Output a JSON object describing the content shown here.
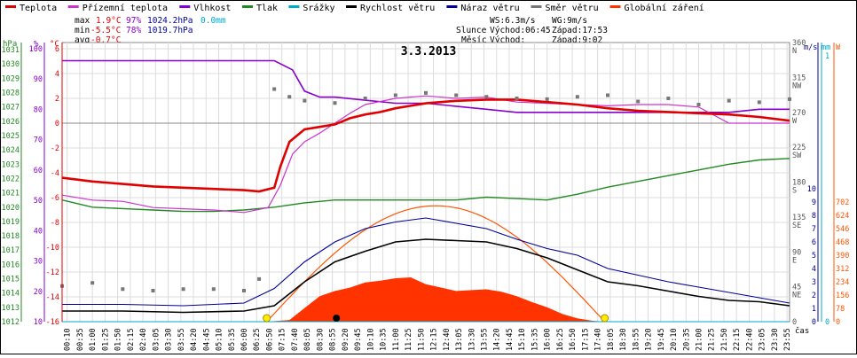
{
  "legend": [
    {
      "label": "Teplota",
      "color": "#e00000"
    },
    {
      "label": "Přízemní teplota",
      "color": "#cc33cc"
    },
    {
      "label": "Vlhkost",
      "color": "#8800cc"
    },
    {
      "label": "Tlak",
      "color": "#228822"
    },
    {
      "label": "Srážky",
      "color": "#00aacc"
    },
    {
      "label": "Rychlost větru",
      "color": "#000000"
    },
    {
      "label": "Náraz větru",
      "color": "#000099"
    },
    {
      "label": "Směr větru",
      "color": "#777777"
    },
    {
      "label": "Globální záření",
      "color": "#ff3300"
    }
  ],
  "stats": {
    "max": {
      "label": "max",
      "temp": "1.9°C",
      "hum": "97%",
      "press": "1024.2hPa",
      "rain": "0.0mm"
    },
    "min": {
      "label": "min",
      "temp": "-5.5°C",
      "hum": "78%",
      "press": "1019.7hPa"
    },
    "avg": {
      "label": "avg",
      "temp": "-0.7°C"
    }
  },
  "wind_info": {
    "ws": "WS:6.3m/s",
    "wg": "WG:9m/s"
  },
  "sun": {
    "label": "Slunce",
    "rise": "Východ:06:45",
    "set": "Západ:17:53"
  },
  "moon": {
    "label": "Měsíc",
    "rise": "Východ:",
    "set": "Západ:9:02"
  },
  "title": "3.3.2013",
  "axes": {
    "hpa": {
      "unit": "hPa",
      "ticks": [
        "1031",
        "1030",
        "1029",
        "1028",
        "1027",
        "1026",
        "1025",
        "1024",
        "1023",
        "1022",
        "1021",
        "1020",
        "1019",
        "1018",
        "1017",
        "1016",
        "1015",
        "1014",
        "1013",
        "1012"
      ]
    },
    "pct": {
      "unit": "%",
      "ticks": [
        "100",
        "90",
        "80",
        "70",
        "60",
        "50",
        "40",
        "30",
        "20",
        "10"
      ]
    },
    "temp": {
      "unit": "°C",
      "ticks": [
        "6",
        "4",
        "2",
        "0",
        "-2",
        "-4",
        "-6",
        "-8",
        "-10",
        "-12",
        "-14",
        "-16"
      ]
    },
    "dir": {
      "ticks": [
        {
          "v": "360",
          "l": "N"
        },
        {
          "v": "315",
          "l": "NW"
        },
        {
          "v": "270",
          "l": "W"
        },
        {
          "v": "225",
          "l": "SW"
        },
        {
          "v": "180",
          "l": "S"
        },
        {
          "v": "135",
          "l": "SE"
        },
        {
          "v": "90",
          "l": "E"
        },
        {
          "v": "45",
          "l": "NE"
        },
        {
          "v": "0",
          "l": ""
        }
      ]
    },
    "ms": {
      "unit": "m/s",
      "ticks": [
        "10",
        "9",
        "8",
        "7",
        "6",
        "5",
        "4",
        "3",
        "2",
        "1",
        "0"
      ]
    },
    "mm": {
      "unit": "mm",
      "ticks": [
        "1",
        "0"
      ]
    },
    "w": {
      "unit": "W",
      "ticks": [
        "702",
        "624",
        "546",
        "468",
        "390",
        "312",
        "234",
        "156",
        "78",
        "0"
      ]
    },
    "time_label": "čas",
    "time_ticks": [
      "00:10",
      "00:35",
      "01:00",
      "01:25",
      "01:50",
      "02:15",
      "02:40",
      "03:05",
      "03:30",
      "03:55",
      "04:20",
      "04:45",
      "05:10",
      "05:35",
      "06:00",
      "06:25",
      "06:50",
      "07:15",
      "07:40",
      "08:05",
      "08:30",
      "08:55",
      "09:20",
      "09:45",
      "10:10",
      "10:35",
      "11:00",
      "11:25",
      "11:50",
      "12:15",
      "12:40",
      "13:05",
      "13:30",
      "13:55",
      "14:20",
      "14:45",
      "15:10",
      "15:35",
      "16:00",
      "16:25",
      "16:50",
      "17:15",
      "17:40",
      "18:05",
      "18:30",
      "18:55",
      "19:20",
      "19:45",
      "20:10",
      "20:35",
      "21:00",
      "21:25",
      "21:50",
      "22:15",
      "22:40",
      "23:05",
      "23:30",
      "23:55"
    ]
  },
  "chart_data": {
    "type": "line",
    "title": "3.3.2013",
    "x_unit": "time of day (hours)",
    "grid": true,
    "legend_position": "top",
    "series": [
      {
        "name": "Teplota",
        "unit": "°C",
        "color": "#e00000",
        "points": [
          [
            0,
            -4.4
          ],
          [
            1,
            -4.7
          ],
          [
            2,
            -4.9
          ],
          [
            3,
            -5.1
          ],
          [
            4,
            -5.2
          ],
          [
            5,
            -5.3
          ],
          [
            6,
            -5.4
          ],
          [
            6.5,
            -5.5
          ],
          [
            7,
            -5.2
          ],
          [
            7.2,
            -3.5
          ],
          [
            7.5,
            -1.5
          ],
          [
            8,
            -0.5
          ],
          [
            8.5,
            -0.3
          ],
          [
            9,
            -0.1
          ],
          [
            9.5,
            0.4
          ],
          [
            10,
            0.7
          ],
          [
            10.5,
            0.9
          ],
          [
            11,
            1.2
          ],
          [
            11.5,
            1.4
          ],
          [
            12,
            1.6
          ],
          [
            13,
            1.8
          ],
          [
            14,
            1.9
          ],
          [
            15,
            1.9
          ],
          [
            16,
            1.7
          ],
          [
            17,
            1.5
          ],
          [
            18,
            1.2
          ],
          [
            19,
            1.0
          ],
          [
            20,
            0.9
          ],
          [
            21,
            0.8
          ],
          [
            22,
            0.7
          ],
          [
            23,
            0.5
          ],
          [
            24,
            0.2
          ]
        ]
      },
      {
        "name": "Přízemní teplota",
        "unit": "°C",
        "color": "#cc33cc",
        "points": [
          [
            0,
            -5.8
          ],
          [
            1,
            -6.2
          ],
          [
            2,
            -6.3
          ],
          [
            3,
            -6.8
          ],
          [
            4,
            -6.9
          ],
          [
            5,
            -7.0
          ],
          [
            6,
            -7.2
          ],
          [
            6.8,
            -6.8
          ],
          [
            7.2,
            -5.0
          ],
          [
            7.6,
            -2.5
          ],
          [
            8,
            -1.5
          ],
          [
            8.5,
            -0.8
          ],
          [
            9,
            0.0
          ],
          [
            9.5,
            0.8
          ],
          [
            10,
            1.5
          ],
          [
            11,
            2.0
          ],
          [
            12,
            2.2
          ],
          [
            13,
            2.0
          ],
          [
            14,
            2.1
          ],
          [
            15,
            1.7
          ],
          [
            16,
            1.6
          ],
          [
            17,
            1.5
          ],
          [
            18,
            1.4
          ],
          [
            19,
            1.5
          ],
          [
            20,
            1.5
          ],
          [
            21,
            1.3
          ],
          [
            22,
            0.0
          ],
          [
            23,
            0.0
          ],
          [
            24,
            0.0
          ]
        ]
      },
      {
        "name": "Vlhkost",
        "unit": "%",
        "color": "#8800cc",
        "points": [
          [
            0,
            96
          ],
          [
            3,
            96
          ],
          [
            6,
            96
          ],
          [
            7,
            96
          ],
          [
            7.6,
            93
          ],
          [
            8,
            86
          ],
          [
            8.5,
            84
          ],
          [
            9,
            84
          ],
          [
            10,
            83
          ],
          [
            11,
            82
          ],
          [
            12,
            82
          ],
          [
            13,
            81
          ],
          [
            14,
            80
          ],
          [
            15,
            79
          ],
          [
            16,
            79
          ],
          [
            17,
            79
          ],
          [
            18,
            79
          ],
          [
            19,
            79
          ],
          [
            20,
            79
          ],
          [
            21,
            79
          ],
          [
            22,
            79
          ],
          [
            23,
            80
          ],
          [
            24,
            80
          ]
        ]
      },
      {
        "name": "Tlak",
        "unit": "hPa",
        "color": "#228822",
        "points": [
          [
            0,
            1020.5
          ],
          [
            1,
            1020.0
          ],
          [
            2,
            1019.9
          ],
          [
            3,
            1019.8
          ],
          [
            4,
            1019.7
          ],
          [
            5,
            1019.7
          ],
          [
            6,
            1019.8
          ],
          [
            7,
            1020.0
          ],
          [
            8,
            1020.3
          ],
          [
            9,
            1020.5
          ],
          [
            10,
            1020.5
          ],
          [
            11,
            1020.5
          ],
          [
            12,
            1020.5
          ],
          [
            13,
            1020.5
          ],
          [
            14,
            1020.7
          ],
          [
            15,
            1020.6
          ],
          [
            16,
            1020.5
          ],
          [
            17,
            1020.9
          ],
          [
            18,
            1021.4
          ],
          [
            19,
            1021.8
          ],
          [
            20,
            1022.2
          ],
          [
            21,
            1022.6
          ],
          [
            22,
            1023.0
          ],
          [
            23,
            1023.3
          ],
          [
            24,
            1023.4
          ]
        ]
      },
      {
        "name": "Srážky",
        "unit": "mm",
        "color": "#00aacc",
        "points": [
          [
            0,
            0
          ],
          [
            24,
            0
          ]
        ]
      },
      {
        "name": "Rychlost větru",
        "unit": "m/s",
        "color": "#000000",
        "points": [
          [
            0,
            0.8
          ],
          [
            2,
            0.8
          ],
          [
            4,
            0.7
          ],
          [
            6,
            0.8
          ],
          [
            7,
            1.2
          ],
          [
            8,
            3.0
          ],
          [
            9,
            4.5
          ],
          [
            10,
            5.3
          ],
          [
            11,
            6.0
          ],
          [
            12,
            6.2
          ],
          [
            13,
            6.1
          ],
          [
            14,
            6.0
          ],
          [
            15,
            5.5
          ],
          [
            16,
            4.8
          ],
          [
            17,
            3.9
          ],
          [
            18,
            3.0
          ],
          [
            19,
            2.7
          ],
          [
            20,
            2.3
          ],
          [
            21,
            1.9
          ],
          [
            22,
            1.6
          ],
          [
            23,
            1.5
          ],
          [
            24,
            1.2
          ]
        ]
      },
      {
        "name": "Náraz větru",
        "unit": "m/s",
        "color": "#000099",
        "points": [
          [
            0,
            1.3
          ],
          [
            2,
            1.3
          ],
          [
            4,
            1.2
          ],
          [
            6,
            1.4
          ],
          [
            7,
            2.5
          ],
          [
            8,
            4.5
          ],
          [
            9,
            6.0
          ],
          [
            10,
            7.0
          ],
          [
            11,
            7.5
          ],
          [
            12,
            7.8
          ],
          [
            13,
            7.4
          ],
          [
            14,
            7.0
          ],
          [
            15,
            6.2
          ],
          [
            16,
            5.5
          ],
          [
            17,
            5.0
          ],
          [
            18,
            4.0
          ],
          [
            19,
            3.5
          ],
          [
            20,
            3.0
          ],
          [
            21,
            2.6
          ],
          [
            22,
            2.2
          ],
          [
            23,
            1.8
          ],
          [
            24,
            1.4
          ]
        ]
      },
      {
        "name": "Směr větru",
        "unit": "°",
        "color": "#777777",
        "points": [
          [
            0,
            46
          ],
          [
            1,
            50
          ],
          [
            2,
            42
          ],
          [
            3,
            40
          ],
          [
            4,
            42
          ],
          [
            5,
            42
          ],
          [
            6,
            40
          ],
          [
            6.5,
            55
          ],
          [
            7,
            300
          ],
          [
            7.5,
            290
          ],
          [
            8,
            285
          ],
          [
            9,
            282
          ],
          [
            10,
            288
          ],
          [
            11,
            292
          ],
          [
            12,
            295
          ],
          [
            13,
            292
          ],
          [
            14,
            290
          ],
          [
            15,
            288
          ],
          [
            16,
            287
          ],
          [
            17,
            290
          ],
          [
            18,
            292
          ],
          [
            19,
            284
          ],
          [
            20,
            288
          ],
          [
            21,
            280
          ],
          [
            22,
            285
          ],
          [
            23,
            283
          ],
          [
            24,
            287
          ]
        ]
      },
      {
        "name": "Globální záření",
        "unit": "W/m²",
        "color": "#ff3300",
        "points": [
          [
            6.75,
            0
          ],
          [
            7.5,
            10
          ],
          [
            8,
            80
          ],
          [
            8.5,
            150
          ],
          [
            9,
            180
          ],
          [
            9.5,
            200
          ],
          [
            10,
            230
          ],
          [
            10.5,
            240
          ],
          [
            11,
            255
          ],
          [
            11.5,
            260
          ],
          [
            12,
            220
          ],
          [
            12.5,
            200
          ],
          [
            13,
            180
          ],
          [
            13.5,
            185
          ],
          [
            14,
            190
          ],
          [
            14.5,
            175
          ],
          [
            15,
            150
          ],
          [
            15.5,
            115
          ],
          [
            16,
            85
          ],
          [
            16.5,
            45
          ],
          [
            17,
            20
          ],
          [
            17.5,
            5
          ],
          [
            17.9,
            0
          ]
        ]
      }
    ]
  }
}
